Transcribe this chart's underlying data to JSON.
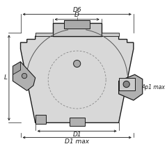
{
  "bg_color": "#ffffff",
  "line_color": "#1a1a1a",
  "body_fill": "#d8d8d8",
  "body_fill2": "#c8c8c8",
  "dim_color": "#1a1a1a",
  "insert_fill": "#b0b0b0",
  "labels": {
    "D6": "D6",
    "D": "D",
    "D1": "D1",
    "D1max": "D1 max",
    "L": "L",
    "Ap1max": "Ap1 max"
  },
  "figsize": [
    2.4,
    2.4
  ],
  "dpi": 100
}
